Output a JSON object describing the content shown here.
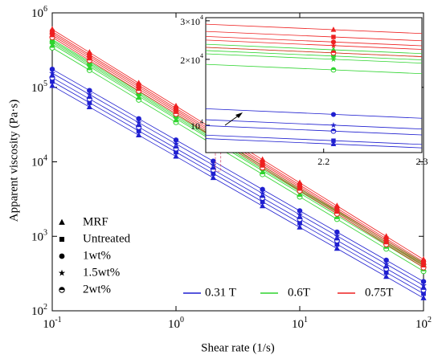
{
  "chart_data": [
    {
      "type": "line",
      "x_label": "Shear rate (1/s)",
      "y_label": "Apparent viscosity (Pa·s)",
      "x_scale": "log",
      "y_scale": "log",
      "xlim": [
        0.1,
        100
      ],
      "xticks": [
        {
          "value": 0.1,
          "label": "10",
          "exponent": "-1"
        },
        {
          "value": 1,
          "label": "10",
          "exponent": "0"
        },
        {
          "value": 10,
          "label": "10",
          "exponent": "1"
        },
        {
          "value": 100,
          "label": "10",
          "exponent": "2"
        }
      ],
      "ylim": [
        100,
        1000000
      ],
      "yticks": [
        {
          "value": 100,
          "label": "10",
          "exponent": "2"
        },
        {
          "value": 1000,
          "label": "10",
          "exponent": "3"
        },
        {
          "value": 10000,
          "label": "10",
          "exponent": "4"
        },
        {
          "value": 100000,
          "label": "10",
          "exponent": "5"
        },
        {
          "value": 1000000,
          "label": "10",
          "exponent": "6"
        }
      ],
      "grid": false,
      "x": [
        0.1,
        0.2,
        0.5,
        1,
        2,
        5,
        10,
        20,
        50,
        100
      ],
      "samples": [
        {
          "name": "MRF",
          "marker": "triangle"
        },
        {
          "name": "Untreated",
          "marker": "square"
        },
        {
          "name": "1wt%",
          "marker": "circle"
        },
        {
          "name": "1.5wt%",
          "marker": "star"
        },
        {
          "name": "2wt%",
          "marker": "half-circle"
        }
      ],
      "fields": [
        {
          "name": "0.31 T",
          "color": "#1f1fd0",
          "series": [
            {
              "values": [
                105000,
                54300,
                22800,
                11800,
                6100,
                2550,
                1320,
                685,
                287,
                148
              ]
            },
            {
              "values": [
                120000,
                62100,
                26000,
                13500,
                6970,
                2920,
                1510,
                782,
                328,
                170
              ]
            },
            {
              "values": [
                175000,
                90600,
                37900,
                19600,
                10200,
                4260,
                2200,
                1140,
                478,
                247
              ]
            },
            {
              "values": [
                155000,
                80200,
                33600,
                17400,
                9010,
                3770,
                1950,
                1010,
                423,
                219
              ]
            },
            {
              "values": [
                135000,
                69900,
                29300,
                15100,
                7840,
                3280,
                1700,
                880,
                369,
                191
              ]
            }
          ]
        },
        {
          "name": "0.6T",
          "color": "#2fd42f",
          "series": [
            {
              "values": [
                440000,
                220000,
                88000,
                44000,
                22000,
                8800,
                4400,
                2200,
                880,
                440
              ]
            },
            {
              "values": [
                420000,
                210000,
                84000,
                42000,
                21000,
                8400,
                4200,
                2100,
                840,
                420
              ]
            },
            {
              "values": [
                400000,
                200000,
                80000,
                40000,
                20000,
                8000,
                4000,
                2000,
                800,
                400
              ]
            },
            {
              "values": [
                380000,
                190000,
                76000,
                38000,
                19000,
                7600,
                3800,
                1900,
                760,
                380
              ]
            },
            {
              "values": [
                340000,
                170000,
                68000,
                34000,
                17000,
                6800,
                3400,
                1700,
                680,
                340
              ]
            }
          ]
        },
        {
          "name": "0.75T",
          "color": "#ee2020",
          "series": [
            {
              "values": [
                600000,
                294000,
                114000,
                56000,
                27400,
                10700,
                5230,
                2560,
                996,
                488
              ]
            },
            {
              "values": [
                560000,
                274000,
                107000,
                52300,
                25600,
                9960,
                4880,
                2390,
                930,
                455
              ]
            },
            {
              "values": [
                530000,
                260000,
                101000,
                49500,
                24200,
                9420,
                4620,
                2260,
                880,
                431
              ]
            },
            {
              "values": [
                500000,
                245000,
                95300,
                46700,
                22900,
                8890,
                4360,
                2140,
                830,
                407
              ]
            },
            {
              "values": [
                470000,
                230000,
                89500,
                43900,
                21500,
                8360,
                4090,
                2010,
                780,
                382
              ]
            }
          ]
        }
      ]
    },
    {
      "type": "inset",
      "xlim": [
        2.08,
        2.3
      ],
      "xticks": [
        2.2,
        2.3
      ],
      "y_scale": "log",
      "ylim": [
        7500,
        31000
      ],
      "yticks": [
        {
          "value": 10000,
          "label": "10",
          "exponent": "4"
        },
        {
          "value": 20000,
          "label": "2×10",
          "exponent": "4"
        },
        {
          "value": 30000,
          "label": "3×10",
          "exponent": "4"
        }
      ],
      "point_x": 2.21,
      "fields": [
        {
          "series": [
            {
              "values": [
                8690,
                7880
              ],
              "point": 8200
            },
            {
              "values": [
                9010,
                8170
              ],
              "point": 8500
            },
            {
              "values": [
                11900,
                10760
              ],
              "point": 11200
            },
            {
              "values": [
                10600,
                9610
              ],
              "point": 10000
            },
            {
              "values": [
                9960,
                9030
              ],
              "point": 9400
            }
          ]
        },
        {
          "series": [
            {
              "values": [
                23430,
                21240
              ],
              "point": 22100
            },
            {
              "values": [
                22680,
                20570
              ],
              "point": 21400
            },
            {
              "values": [
                21940,
                19890
              ],
              "point": 20700
            },
            {
              "values": [
                21200,
                19220
              ],
              "point": 20000
            },
            {
              "values": [
                18970,
                17200
              ],
              "point": 17900
            }
          ]
        },
        {
          "series": [
            {
              "values": [
                28940,
                26240
              ],
              "point": 27300
            },
            {
              "values": [
                26820,
                24310
              ],
              "point": 25300
            },
            {
              "values": [
                25440,
                23060
              ],
              "point": 24000
            },
            {
              "values": [
                24490,
                22200
              ],
              "point": 23100
            },
            {
              "values": [
                22680,
                20570
              ],
              "point": 21400
            }
          ]
        }
      ]
    }
  ]
}
